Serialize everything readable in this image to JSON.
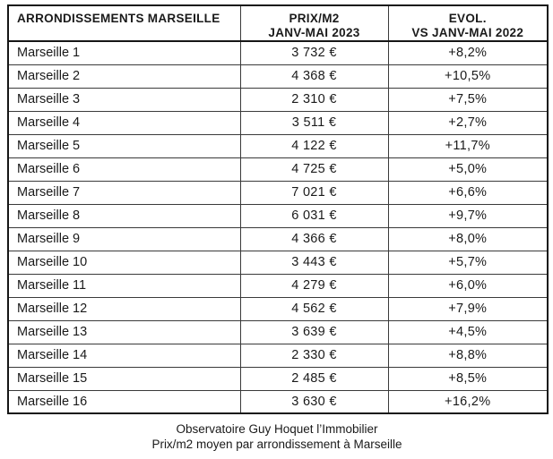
{
  "colors": {
    "text": "#1a1a1a",
    "border_outer": "#161616",
    "border_inner": "#3a3a3a",
    "background": "#ffffff"
  },
  "header": {
    "col1": "ARRONDISSEMENTS MARSEILLE",
    "col2": "PRIX/M2\nJANV-MAI 2023",
    "col3": "EVOL.\nVS JANV-MAI 2022"
  },
  "chart_data": {
    "type": "table",
    "columns": [
      "ARRONDISSEMENTS MARSEILLE",
      "PRIX/M2 JANV-MAI 2023",
      "EVOL. VS JANV-MAI 2022"
    ],
    "rows": [
      [
        "Marseille 1",
        "3 732 €",
        "+8,2%"
      ],
      [
        "Marseille 2",
        "4 368 €",
        "+10,5%"
      ],
      [
        "Marseille 3",
        "2 310 €",
        "+7,5%"
      ],
      [
        "Marseille 4",
        "3 511 €",
        "+2,7%"
      ],
      [
        "Marseille 5",
        "4 122 €",
        "+11,7%"
      ],
      [
        "Marseille 6",
        "4 725 €",
        "+5,0%"
      ],
      [
        "Marseille 7",
        "7 021 €",
        "+6,6%"
      ],
      [
        "Marseille 8",
        "6 031 €",
        "+9,7%"
      ],
      [
        "Marseille 9",
        "4 366 €",
        "+8,0%"
      ],
      [
        "Marseille 10",
        "3 443 €",
        "+5,7%"
      ],
      [
        "Marseille 11",
        "4 279 €",
        "+6,0%"
      ],
      [
        "Marseille 12",
        "4 562 €",
        "+7,9%"
      ],
      [
        "Marseille 13",
        "3 639 €",
        "+4,5%"
      ],
      [
        "Marseille 14",
        "2 330 €",
        "+8,8%"
      ],
      [
        "Marseille 15",
        "2 485 €",
        "+8,5%"
      ],
      [
        "Marseille 16",
        "3 630 €",
        "+16,2%"
      ]
    ],
    "source": "Observatoire Guy Hoquet l’Immobilier",
    "caption": "Prix/m2 moyen par arrondissement à Marseille",
    "prices_numeric_eur_per_m2": [
      3732,
      4368,
      2310,
      3511,
      4122,
      4725,
      7021,
      6031,
      4366,
      3443,
      4279,
      4562,
      3639,
      2330,
      2485,
      3630
    ],
    "evolution_numeric_pct": [
      8.2,
      10.5,
      7.5,
      2.7,
      11.7,
      5.0,
      6.6,
      9.7,
      8.0,
      5.7,
      6.0,
      7.9,
      4.5,
      8.8,
      8.5,
      16.2
    ]
  }
}
